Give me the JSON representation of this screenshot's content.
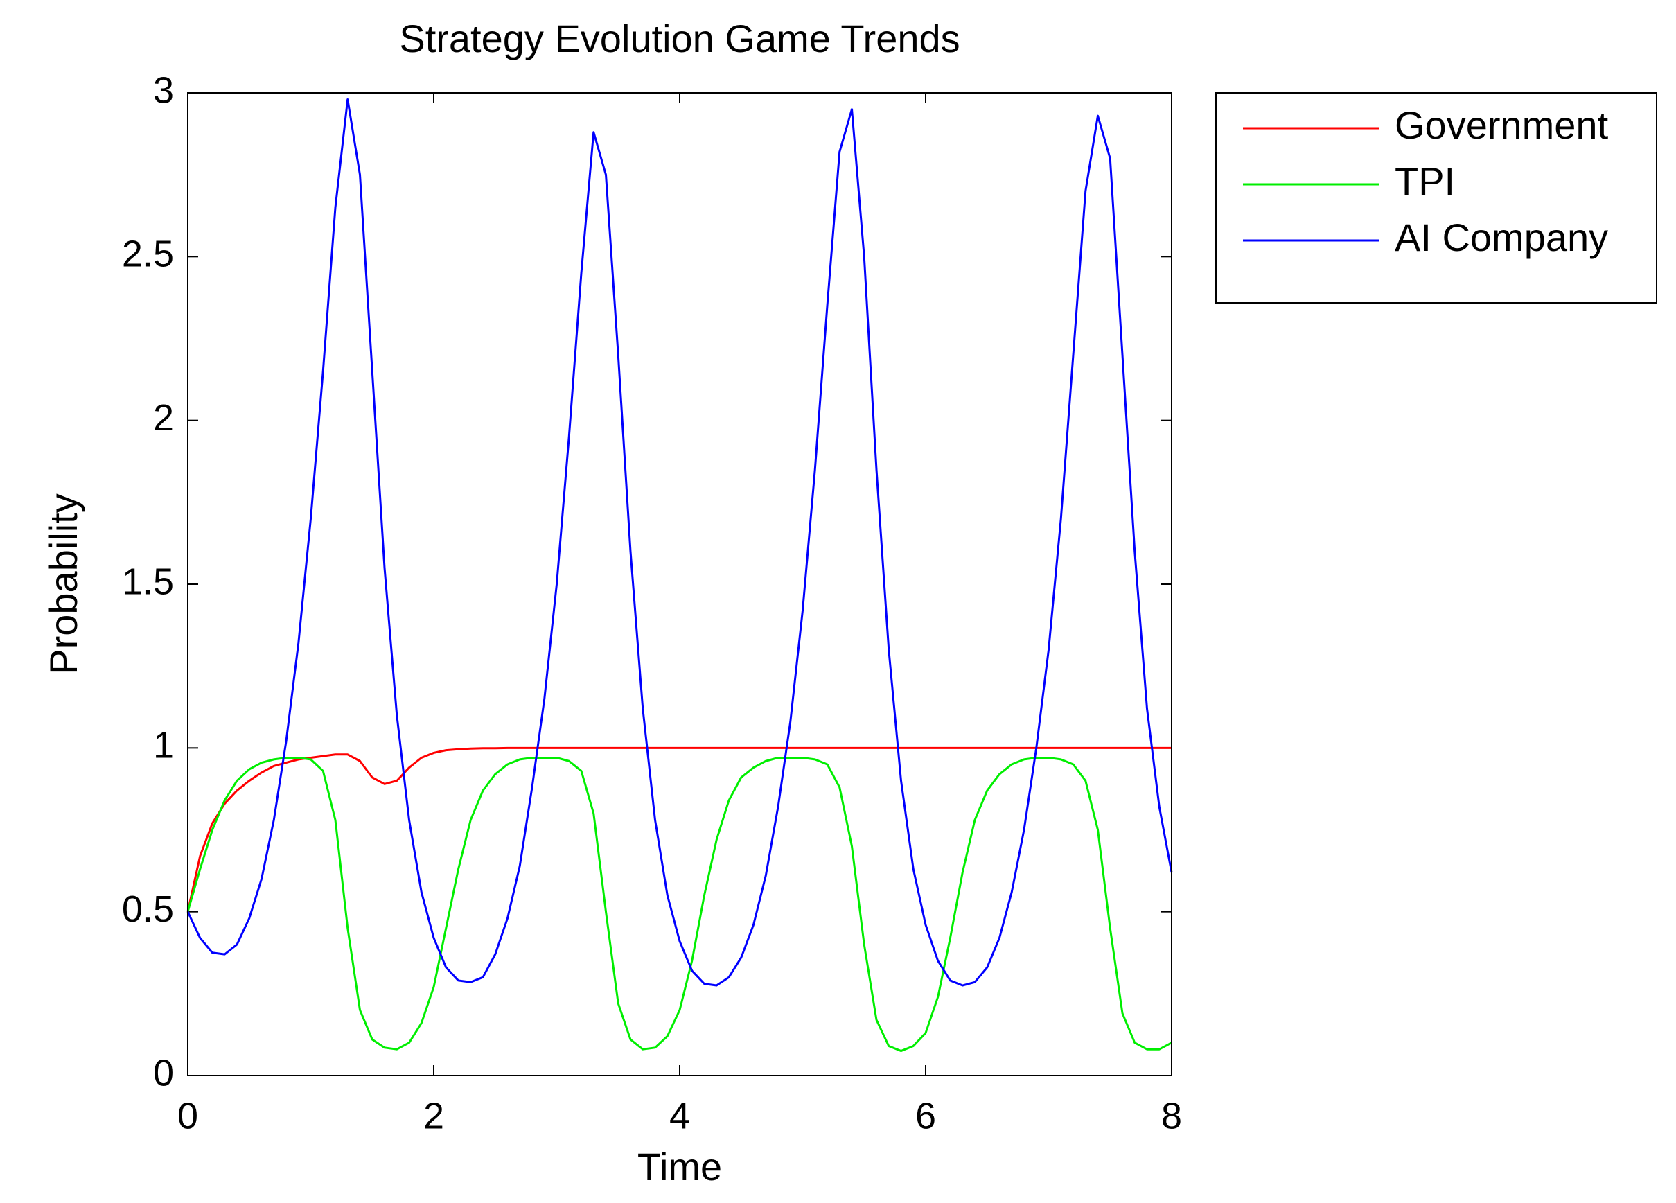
{
  "chart_data": {
    "type": "line",
    "title": "Strategy Evolution Game Trends",
    "xlabel": "Time",
    "ylabel": "Probability",
    "x": [
      0,
      0.1,
      0.2,
      0.3,
      0.4,
      0.5,
      0.6,
      0.7,
      0.8,
      0.9,
      1,
      1.1,
      1.2,
      1.3,
      1.4,
      1.5,
      1.6,
      1.7,
      1.8,
      1.9,
      2,
      2.1,
      2.2,
      2.3,
      2.4,
      2.5,
      2.6,
      2.7,
      2.8,
      2.9,
      3,
      3.1,
      3.2,
      3.3,
      3.4,
      3.5,
      3.6,
      3.7,
      3.8,
      3.9,
      4,
      4.1,
      4.2,
      4.3,
      4.4,
      4.5,
      4.6,
      4.7,
      4.8,
      4.9,
      5,
      5.1,
      5.2,
      5.3,
      5.4,
      5.5,
      5.6,
      5.7,
      5.8,
      5.9,
      6,
      6.1,
      6.2,
      6.3,
      6.4,
      6.5,
      6.6,
      6.7,
      6.8,
      6.9,
      7,
      7.1,
      7.2,
      7.3,
      7.4,
      7.5,
      7.6,
      7.7,
      7.8,
      7.9,
      8
    ],
    "series": [
      {
        "name": "Government",
        "color": "#ff0000",
        "values": [
          0.5,
          0.67,
          0.77,
          0.83,
          0.87,
          0.9,
          0.925,
          0.945,
          0.955,
          0.965,
          0.97,
          0.975,
          0.98,
          0.98,
          0.96,
          0.91,
          0.89,
          0.9,
          0.94,
          0.97,
          0.985,
          0.993,
          0.996,
          0.998,
          0.999,
          0.999,
          1,
          1,
          1,
          1,
          1,
          1,
          1,
          1,
          1,
          1,
          1,
          1,
          1,
          1,
          1,
          1,
          1,
          1,
          1,
          1,
          1,
          1,
          1,
          1,
          1,
          1,
          1,
          1,
          1,
          1,
          1,
          1,
          1,
          1,
          1,
          1,
          1,
          1,
          1,
          1,
          1,
          1,
          1,
          1,
          1,
          1,
          1,
          1,
          1,
          1,
          1,
          1,
          1,
          1,
          1
        ]
      },
      {
        "name": "TPI",
        "color": "#00ee00",
        "values": [
          0.5,
          0.63,
          0.75,
          0.84,
          0.9,
          0.935,
          0.955,
          0.965,
          0.97,
          0.97,
          0.965,
          0.93,
          0.78,
          0.45,
          0.2,
          0.11,
          0.085,
          0.08,
          0.1,
          0.16,
          0.27,
          0.45,
          0.63,
          0.78,
          0.87,
          0.92,
          0.95,
          0.965,
          0.97,
          0.97,
          0.97,
          0.96,
          0.93,
          0.8,
          0.5,
          0.22,
          0.11,
          0.08,
          0.085,
          0.12,
          0.2,
          0.35,
          0.55,
          0.72,
          0.84,
          0.91,
          0.94,
          0.96,
          0.97,
          0.97,
          0.97,
          0.965,
          0.95,
          0.88,
          0.7,
          0.4,
          0.17,
          0.09,
          0.075,
          0.09,
          0.13,
          0.24,
          0.42,
          0.62,
          0.78,
          0.87,
          0.92,
          0.95,
          0.965,
          0.97,
          0.97,
          0.965,
          0.95,
          0.9,
          0.75,
          0.45,
          0.19,
          0.1,
          0.08,
          0.08,
          0.1
        ]
      },
      {
        "name": "AI Company",
        "color": "#0000ff",
        "values": [
          0.5,
          0.42,
          0.375,
          0.37,
          0.4,
          0.48,
          0.6,
          0.78,
          1.02,
          1.32,
          1.7,
          2.15,
          2.65,
          2.98,
          2.75,
          2.15,
          1.55,
          1.1,
          0.78,
          0.56,
          0.42,
          0.33,
          0.29,
          0.285,
          0.3,
          0.37,
          0.48,
          0.64,
          0.88,
          1.15,
          1.5,
          1.95,
          2.45,
          2.88,
          2.75,
          2.2,
          1.6,
          1.12,
          0.78,
          0.55,
          0.41,
          0.32,
          0.28,
          0.275,
          0.3,
          0.36,
          0.46,
          0.61,
          0.82,
          1.08,
          1.42,
          1.85,
          2.35,
          2.82,
          2.95,
          2.5,
          1.85,
          1.3,
          0.9,
          0.63,
          0.46,
          0.35,
          0.29,
          0.275,
          0.285,
          0.33,
          0.42,
          0.56,
          0.75,
          1,
          1.3,
          1.7,
          2.2,
          2.7,
          2.93,
          2.8,
          2.2,
          1.6,
          1.12,
          0.82,
          0.62
        ]
      }
    ],
    "xlim": [
      0,
      8
    ],
    "xticks": [
      0,
      2,
      4,
      6,
      8
    ],
    "ylim": [
      0,
      3
    ],
    "yticks": [
      0,
      0.5,
      1,
      1.5,
      2,
      2.5,
      3
    ],
    "grid": false,
    "legend": "outside"
  }
}
